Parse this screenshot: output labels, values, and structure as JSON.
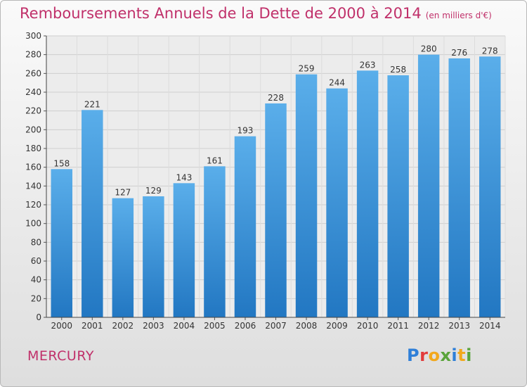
{
  "title": "Remboursements Annuels de la Dette de 2000 à 2014",
  "subtitle": "(en milliers d'€)",
  "commune": "MERCURY",
  "logo": {
    "letters": [
      "P",
      "r",
      "o",
      "x",
      "i",
      "t",
      "i"
    ],
    "colors": [
      "#2f7fd8",
      "#e23b3b",
      "#f2a81d",
      "#5aa43b",
      "#2f7fd8",
      "#f2a81d",
      "#5aa43b"
    ]
  },
  "chart_data": {
    "type": "bar",
    "categories": [
      "2000",
      "2001",
      "2002",
      "2003",
      "2004",
      "2005",
      "2006",
      "2007",
      "2008",
      "2009",
      "2010",
      "2011",
      "2012",
      "2013",
      "2014"
    ],
    "values": [
      158,
      221,
      127,
      129,
      143,
      161,
      193,
      228,
      259,
      244,
      263,
      258,
      280,
      276,
      278
    ],
    "yticks": [
      0,
      20,
      40,
      60,
      80,
      100,
      120,
      140,
      160,
      180,
      200,
      220,
      240,
      260,
      280,
      300
    ],
    "ylim": [
      0,
      300
    ],
    "grid": true,
    "bar_color": "#3d8fd9"
  }
}
